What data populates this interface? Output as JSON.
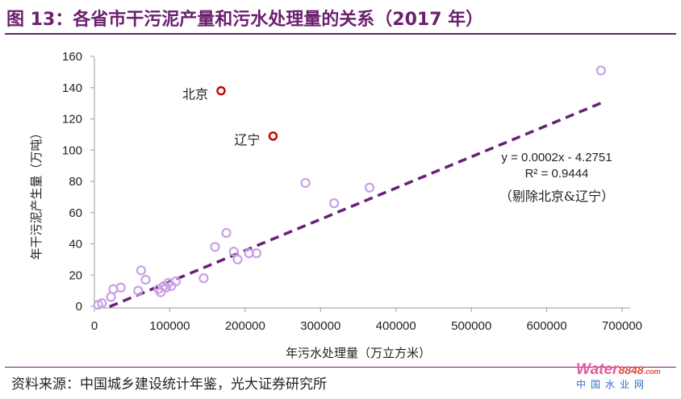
{
  "figure": {
    "title": "图 13：各省市干污泥产量和污水处理量的关系（2017 年）",
    "source": "资料来源：中国城乡建设统计年鉴，光大证券研究所"
  },
  "logo": {
    "brand_word": "Water",
    "brand_number": "8848",
    "brand_suffix": ".com",
    "subtitle": "中国水业网"
  },
  "colors": {
    "accent": "#6b1f6e",
    "point": "#c9a0e6",
    "highlight": "#c00000",
    "trendline": "#6b1f7a"
  },
  "chart_data": {
    "type": "scatter",
    "title": "",
    "xlabel": "年污水处理量（万立方米）",
    "ylabel": "年干污泥产生量（万吨）",
    "xlim": [
      0,
      700000
    ],
    "ylim": [
      0,
      160
    ],
    "xticks": [
      0,
      100000,
      200000,
      300000,
      400000,
      500000,
      600000,
      700000
    ],
    "yticks": [
      0,
      20,
      40,
      60,
      80,
      100,
      120,
      140,
      160
    ],
    "series": [
      {
        "name": "各省市",
        "points": [
          {
            "x": 5000,
            "y": 1
          },
          {
            "x": 10000,
            "y": 2
          },
          {
            "x": 22000,
            "y": 6
          },
          {
            "x": 25000,
            "y": 11
          },
          {
            "x": 35000,
            "y": 12
          },
          {
            "x": 58000,
            "y": 10
          },
          {
            "x": 62000,
            "y": 23
          },
          {
            "x": 68000,
            "y": 17
          },
          {
            "x": 85000,
            "y": 11
          },
          {
            "x": 88000,
            "y": 9
          },
          {
            "x": 92000,
            "y": 13
          },
          {
            "x": 95000,
            "y": 12
          },
          {
            "x": 98000,
            "y": 15
          },
          {
            "x": 102000,
            "y": 13
          },
          {
            "x": 108000,
            "y": 16
          },
          {
            "x": 145000,
            "y": 18
          },
          {
            "x": 160000,
            "y": 38
          },
          {
            "x": 175000,
            "y": 47
          },
          {
            "x": 185000,
            "y": 35
          },
          {
            "x": 190000,
            "y": 30
          },
          {
            "x": 205000,
            "y": 34
          },
          {
            "x": 215000,
            "y": 34
          },
          {
            "x": 280000,
            "y": 79
          },
          {
            "x": 318000,
            "y": 66
          },
          {
            "x": 365000,
            "y": 76
          },
          {
            "x": 672000,
            "y": 151
          }
        ]
      },
      {
        "name": "北京、辽宁",
        "highlight": true,
        "points": [
          {
            "x": 168000,
            "y": 138,
            "label": "北京"
          },
          {
            "x": 237000,
            "y": 109,
            "label": "辽宁"
          }
        ]
      }
    ],
    "trendline": {
      "slope": 0.0002,
      "intercept": -4.2751,
      "x_range": [
        20000,
        672000
      ],
      "style": "dashed"
    },
    "annotations": {
      "equation": "y = 0.0002x - 4.2751",
      "r_squared": "R² = 0.9444",
      "note": "（剔除北京&辽宁）"
    }
  }
}
